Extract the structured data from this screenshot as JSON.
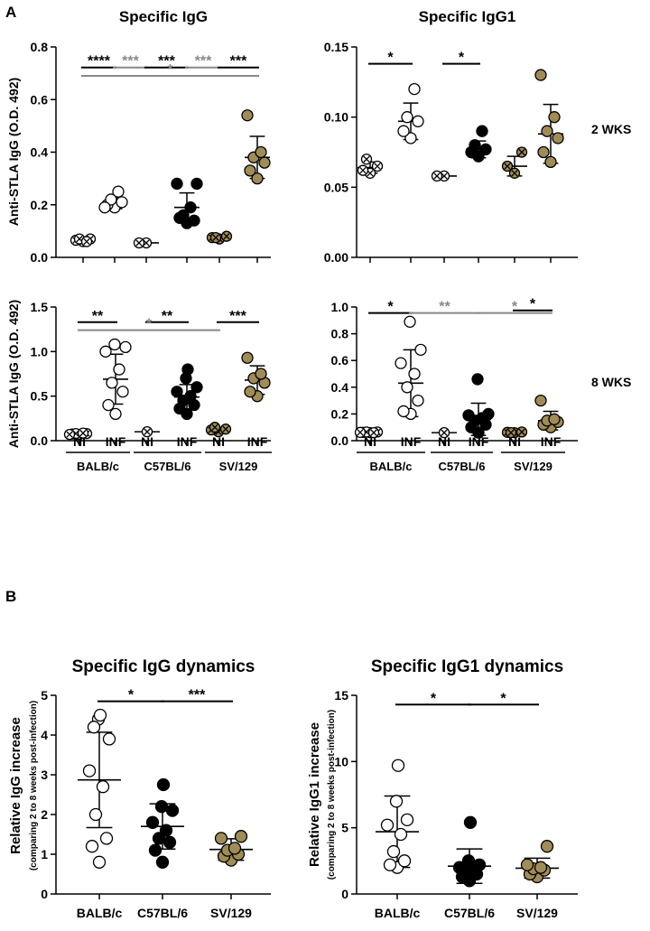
{
  "panel_labels": {
    "a": "A",
    "b": "B"
  },
  "group_labels": {
    "ni": "NI",
    "inf": "INF",
    "strains": [
      "BALB/c",
      "C57BL/6",
      "SV/129"
    ]
  },
  "row_labels": {
    "wk2": "2 WKS",
    "wk8": "8 WKS"
  },
  "colors": {
    "balb": "#ffffff",
    "c57": "#000000",
    "sv": "#a08c58",
    "sig_black": "#000000",
    "sig_gray": "#888888"
  },
  "chart_data": [
    {
      "id": "igg2",
      "type": "scatter",
      "title": "Specific IgG",
      "ylabel": "Anti-STLA IgG (O.D. 492)",
      "ylim": [
        0,
        0.8
      ],
      "yticks": [
        0.0,
        0.2,
        0.4,
        0.6,
        0.8
      ],
      "tick_decimals": 1,
      "groups": [
        {
          "strain": "balb",
          "cond": "NI",
          "values": [
            0.06,
            0.065,
            0.07,
            0.07,
            0.06
          ],
          "mean": 0.066,
          "sd": 0.005,
          "nicolor": "balb"
        },
        {
          "strain": "balb",
          "cond": "INF",
          "values": [
            0.19,
            0.2,
            0.21,
            0.22,
            0.25,
            0.19
          ],
          "mean": 0.205,
          "sd": 0.02
        },
        {
          "strain": "c57",
          "cond": "NI",
          "values": [
            0.055,
            0.055
          ],
          "mean": 0.055,
          "sd": 0.0,
          "nicolor": "balb"
        },
        {
          "strain": "c57",
          "cond": "INF",
          "values": [
            0.13,
            0.15,
            0.14,
            0.16,
            0.19,
            0.28,
            0.28
          ],
          "mean": 0.19,
          "sd": 0.055
        },
        {
          "strain": "sv",
          "cond": "NI",
          "values": [
            0.07,
            0.075,
            0.08,
            0.075
          ],
          "mean": 0.075,
          "sd": 0.005,
          "nicolor": "sv"
        },
        {
          "strain": "sv",
          "cond": "INF",
          "values": [
            0.3,
            0.33,
            0.36,
            0.38,
            0.4,
            0.54
          ],
          "mean": 0.38,
          "sd": 0.08
        }
      ],
      "sig": [
        {
          "label": "****",
          "from": 0,
          "to": 1,
          "y": 0.722,
          "color": "sig_black"
        },
        {
          "label": "***",
          "from": 1,
          "to": 2,
          "y": 0.722,
          "color": "sig_gray"
        },
        {
          "label": "***",
          "from": 2,
          "to": 3,
          "y": 0.722,
          "color": "sig_black"
        },
        {
          "label": "***",
          "from": 3,
          "to": 4,
          "y": 0.722,
          "color": "sig_gray"
        },
        {
          "label": "***",
          "from": 4,
          "to": 5,
          "y": 0.722,
          "color": "sig_black"
        },
        {
          "label": "*",
          "from": 0,
          "to": 5,
          "y": 0.69,
          "color": "sig_gray"
        }
      ]
    },
    {
      "id": "igg1_2",
      "type": "scatter",
      "title": "Specific IgG1",
      "ylabel": "",
      "ylim": [
        0,
        0.15
      ],
      "yticks": [
        0.0,
        0.05,
        0.1,
        0.15
      ],
      "tick_decimals": 2,
      "groups": [
        {
          "strain": "balb",
          "cond": "NI",
          "values": [
            0.06,
            0.062,
            0.065,
            0.07
          ],
          "mean": 0.064,
          "sd": 0.004,
          "nicolor": "balb"
        },
        {
          "strain": "balb",
          "cond": "INF",
          "values": [
            0.085,
            0.09,
            0.097,
            0.1,
            0.12
          ],
          "mean": 0.097,
          "sd": 0.013
        },
        {
          "strain": "c57",
          "cond": "NI",
          "values": [
            0.058,
            0.058
          ],
          "mean": 0.058,
          "sd": 0.0,
          "nicolor": "balb"
        },
        {
          "strain": "c57",
          "cond": "INF",
          "values": [
            0.072,
            0.075,
            0.077,
            0.08,
            0.09
          ],
          "mean": 0.077,
          "sd": 0.006
        },
        {
          "strain": "sv",
          "cond": "NI",
          "values": [
            0.06,
            0.065,
            0.075
          ],
          "mean": 0.065,
          "sd": 0.007,
          "nicolor": "sv"
        },
        {
          "strain": "sv",
          "cond": "INF",
          "values": [
            0.068,
            0.075,
            0.085,
            0.09,
            0.1,
            0.13
          ],
          "mean": 0.088,
          "sd": 0.021
        }
      ],
      "sig": [
        {
          "label": "*",
          "from": 0,
          "to": 1,
          "y": 0.138,
          "color": "sig_black"
        },
        {
          "label": "*",
          "from": 2,
          "to": 3,
          "y": 0.138,
          "color": "sig_black"
        }
      ]
    },
    {
      "id": "igg8",
      "type": "scatter",
      "title": "",
      "ylabel": "Anti-STLA IgG (O.D. 492)",
      "ylim": [
        0,
        1.5
      ],
      "yticks": [
        0.0,
        0.5,
        1.0,
        1.5
      ],
      "tick_decimals": 1,
      "groups": [
        {
          "strain": "balb",
          "cond": "NI",
          "values": [
            0.07,
            0.075,
            0.08,
            0.08,
            0.085,
            0.07
          ],
          "mean": 0.077,
          "sd": 0.006,
          "nicolor": "balb"
        },
        {
          "strain": "balb",
          "cond": "INF",
          "values": [
            0.3,
            0.4,
            0.55,
            0.65,
            0.8,
            1.0,
            1.05,
            1.08
          ],
          "mean": 0.69,
          "sd": 0.28
        },
        {
          "strain": "c57",
          "cond": "NI",
          "values": [
            0.1
          ],
          "mean": 0.1,
          "sd": 0.0,
          "nicolor": "balb"
        },
        {
          "strain": "c57",
          "cond": "INF",
          "values": [
            0.3,
            0.36,
            0.4,
            0.45,
            0.5,
            0.55,
            0.6,
            0.7,
            0.8
          ],
          "mean": 0.49,
          "sd": 0.14
        },
        {
          "strain": "sv",
          "cond": "NI",
          "values": [
            0.1,
            0.12,
            0.13,
            0.15
          ],
          "mean": 0.125,
          "sd": 0.02,
          "nicolor": "sv"
        },
        {
          "strain": "sv",
          "cond": "INF",
          "values": [
            0.5,
            0.55,
            0.65,
            0.7,
            0.75,
            0.93
          ],
          "mean": 0.68,
          "sd": 0.16
        }
      ],
      "sig": [
        {
          "label": "**",
          "from": 0,
          "to": 1,
          "y": 1.33,
          "color": "sig_black"
        },
        {
          "label": "**",
          "from": 2,
          "to": 3,
          "y": 1.33,
          "color": "sig_black"
        },
        {
          "label": "***",
          "from": 4,
          "to": 5,
          "y": 1.33,
          "color": "sig_black"
        },
        {
          "label": "*",
          "from": 0,
          "to": 4,
          "y": 1.24,
          "color": "sig_gray"
        }
      ]
    },
    {
      "id": "igg1_8",
      "type": "scatter",
      "title": "",
      "ylabel": "",
      "ylim": [
        0,
        1.0
      ],
      "yticks": [
        0.0,
        0.2,
        0.4,
        0.6,
        0.8,
        1.0
      ],
      "tick_decimals": 1,
      "groups": [
        {
          "strain": "balb",
          "cond": "NI",
          "values": [
            0.06,
            0.062,
            0.065,
            0.065,
            0.06,
            0.062
          ],
          "mean": 0.062,
          "sd": 0.003,
          "nicolor": "balb"
        },
        {
          "strain": "balb",
          "cond": "INF",
          "values": [
            0.2,
            0.22,
            0.3,
            0.4,
            0.5,
            0.58,
            0.68,
            0.89
          ],
          "mean": 0.43,
          "sd": 0.25
        },
        {
          "strain": "c57",
          "cond": "NI",
          "values": [
            0.06
          ],
          "mean": 0.06,
          "sd": 0.0,
          "nicolor": "balb"
        },
        {
          "strain": "c57",
          "cond": "INF",
          "values": [
            0.06,
            0.1,
            0.12,
            0.15,
            0.17,
            0.19,
            0.2,
            0.46
          ],
          "mean": 0.16,
          "sd": 0.12
        },
        {
          "strain": "sv",
          "cond": "NI",
          "values": [
            0.06,
            0.062,
            0.065,
            0.06
          ],
          "mean": 0.062,
          "sd": 0.003,
          "nicolor": "sv"
        },
        {
          "strain": "sv",
          "cond": "INF",
          "values": [
            0.1,
            0.12,
            0.14,
            0.15,
            0.16,
            0.3
          ],
          "mean": 0.15,
          "sd": 0.07
        }
      ],
      "sig": [
        {
          "label": "*",
          "from": 0,
          "to": 1,
          "y": 0.955,
          "color": "sig_black"
        },
        {
          "label": "**",
          "from": 1,
          "to": 3,
          "y": 0.955,
          "color": "sig_gray"
        },
        {
          "label": "*",
          "from": 3,
          "to": 5,
          "y": 0.955,
          "color": "sig_gray"
        },
        {
          "label": "*",
          "from": 4,
          "to": 5,
          "y": 0.975,
          "color": "sig_black"
        }
      ]
    },
    {
      "id": "dynG",
      "type": "scatter",
      "title": "Specific IgG dynamics",
      "ylabel": "Relative IgG increase",
      "ylabel2": "(comparing 2 to 8 weeks post-infection)",
      "ylim": [
        0,
        5
      ],
      "yticks": [
        0,
        1,
        2,
        3,
        4,
        5
      ],
      "tick_decimals": 0,
      "groups": [
        {
          "strain": "balb",
          "label": "BALB/c",
          "values": [
            0.8,
            1.2,
            1.4,
            2.0,
            2.7,
            3.1,
            3.9,
            4.4,
            4.5,
            4.2
          ],
          "mean": 2.87,
          "sd": 1.2
        },
        {
          "strain": "c57",
          "label": "C57BL/6",
          "values": [
            0.8,
            1.1,
            1.3,
            1.4,
            1.6,
            1.8,
            2.1,
            2.2,
            2.75
          ],
          "mean": 1.7,
          "sd": 0.57
        },
        {
          "strain": "sv",
          "label": "SV/129",
          "values": [
            0.85,
            0.95,
            1.0,
            1.1,
            1.15,
            1.4,
            1.45
          ],
          "mean": 1.12,
          "sd": 0.27
        }
      ],
      "sig": [
        {
          "label": "*",
          "from": 0,
          "to": 1,
          "y": 4.85,
          "color": "sig_black"
        },
        {
          "label": "***",
          "from": 1,
          "to": 2,
          "y": 4.85,
          "color": "sig_black"
        }
      ]
    },
    {
      "id": "dynG1",
      "type": "scatter",
      "title": "Specific IgG1 dynamics",
      "ylabel": "Relative IgG1 increase",
      "ylabel2": "(comparing 2 to 8 weeks post-infection)",
      "ylim": [
        0,
        15
      ],
      "yticks": [
        0,
        5,
        10,
        15
      ],
      "tick_decimals": 0,
      "groups": [
        {
          "strain": "balb",
          "label": "BALB/c",
          "values": [
            2.0,
            2.2,
            2.5,
            3.2,
            4.5,
            5.2,
            5.6,
            7.0,
            9.7
          ],
          "mean": 4.7,
          "sd": 2.7
        },
        {
          "strain": "c57",
          "label": "C57BL/6",
          "values": [
            1.0,
            1.3,
            1.5,
            1.7,
            1.8,
            2.0,
            2.2,
            2.5,
            5.4
          ],
          "mean": 2.1,
          "sd": 1.3
        },
        {
          "strain": "sv",
          "label": "SV/129",
          "values": [
            1.3,
            1.5,
            1.8,
            1.9,
            2.0,
            2.2,
            3.6
          ],
          "mean": 1.95,
          "sd": 0.75
        }
      ],
      "sig": [
        {
          "label": "*",
          "from": 0,
          "to": 1,
          "y": 14.3,
          "color": "sig_black"
        },
        {
          "label": "*",
          "from": 1,
          "to": 2,
          "y": 14.3,
          "color": "sig_black"
        }
      ]
    }
  ]
}
